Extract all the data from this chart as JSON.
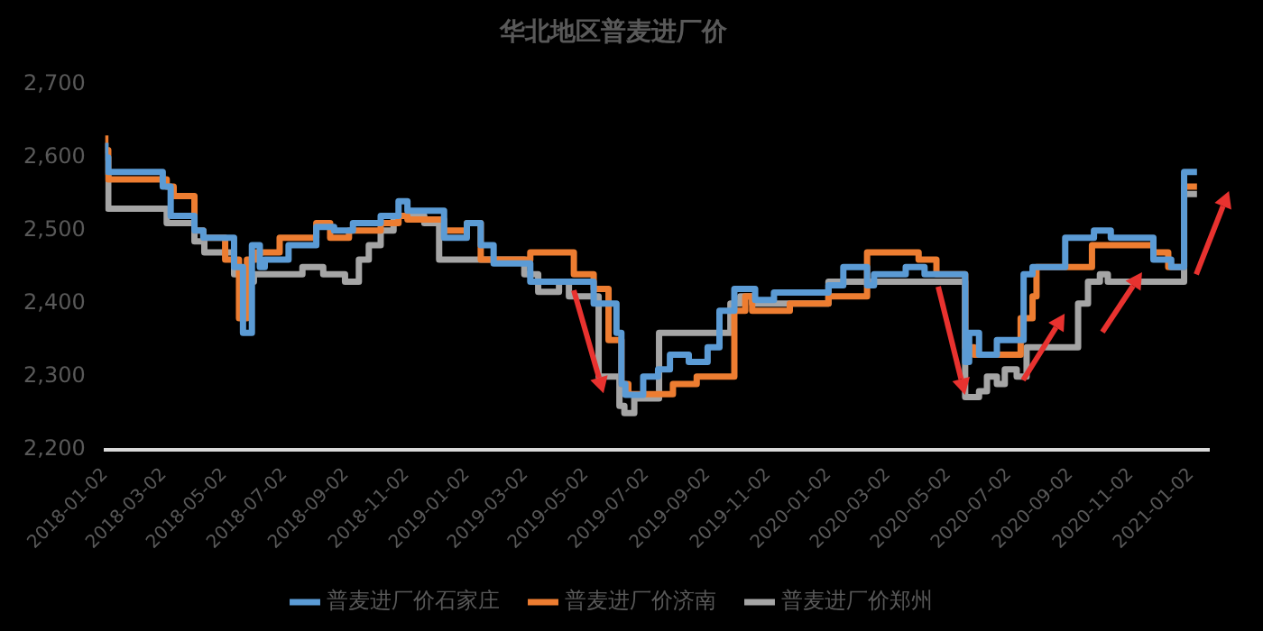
{
  "chart_data": {
    "type": "step",
    "title": "华北地区普麦进厂价",
    "xlim": [
      "2018-01-02",
      "2021-01-20"
    ],
    "xticks": [
      "2018-01-02",
      "2018-03-02",
      "2018-05-02",
      "2018-07-02",
      "2018-09-02",
      "2018-11-02",
      "2019-01-02",
      "2019-03-02",
      "2019-05-02",
      "2019-07-02",
      "2019-09-02",
      "2019-11-02",
      "2020-01-02",
      "2020-03-02",
      "2020-05-02",
      "2020-07-02",
      "2020-09-02",
      "2020-11-02",
      "2021-01-02"
    ],
    "ylim": [
      2200,
      2700
    ],
    "yticks": [
      {
        "value": 2200,
        "label": "2,200"
      },
      {
        "value": 2300,
        "label": "2,300"
      },
      {
        "value": 2400,
        "label": "2,400"
      },
      {
        "value": 2500,
        "label": "2,500"
      },
      {
        "value": 2600,
        "label": "2,600"
      },
      {
        "value": 2700,
        "label": "2,700"
      }
    ],
    "grid": false,
    "legend": "bottom",
    "line_style": "solid",
    "marker": "none",
    "series": [
      {
        "name": "普麦进厂价石家庄",
        "color": "#5b9bd5",
        "x": [
          "2018-01-02",
          "2018-01-05",
          "2018-03-01",
          "2018-03-09",
          "2018-04-02",
          "2018-04-11",
          "2018-05-12",
          "2018-05-21",
          "2018-05-30",
          "2018-06-07",
          "2018-06-12",
          "2018-07-06",
          "2018-08-03",
          "2018-08-21",
          "2018-09-09",
          "2018-10-07",
          "2018-10-25",
          "2018-11-03",
          "2018-12-10",
          "2019-01-02",
          "2019-01-16",
          "2019-01-29",
          "2019-03-07",
          "2019-05-10",
          "2019-06-02",
          "2019-06-07",
          "2019-06-11",
          "2019-06-29",
          "2019-07-14",
          "2019-07-26",
          "2019-08-14",
          "2019-09-02",
          "2019-09-14",
          "2019-09-29",
          "2019-10-20",
          "2019-11-08",
          "2020-01-02",
          "2020-01-17",
          "2020-02-10",
          "2020-02-17",
          "2020-03-20",
          "2020-04-08",
          "2020-05-19",
          "2020-05-23",
          "2020-06-02",
          "2020-06-20",
          "2020-07-17",
          "2020-07-26",
          "2020-08-28",
          "2020-09-26",
          "2020-10-13",
          "2020-11-25",
          "2020-12-13",
          "2020-12-26",
          "2021-01-05",
          "2021-01-08"
        ],
        "values": [
          2620,
          2600,
          2580,
          2560,
          2520,
          2500,
          2490,
          2450,
          2360,
          2480,
          2450,
          2460,
          2480,
          2505,
          2500,
          2510,
          2520,
          2540,
          2527,
          2490,
          2510,
          2480,
          2455,
          2430,
          2400,
          2360,
          2290,
          2275,
          2300,
          2310,
          2330,
          2320,
          2340,
          2390,
          2420,
          2405,
          2415,
          2425,
          2450,
          2425,
          2440,
          2450,
          2440,
          2320,
          2360,
          2330,
          2350,
          2440,
          2450,
          2490,
          2500,
          2490,
          2460,
          2450,
          2580,
          2580
        ]
      },
      {
        "name": "普麦进厂价济南",
        "color": "#ed7d31",
        "x": [
          "2018-01-02",
          "2018-01-05",
          "2018-03-05",
          "2018-03-12",
          "2018-04-02",
          "2018-04-11",
          "2018-05-03",
          "2018-05-17",
          "2018-05-25",
          "2018-06-03",
          "2018-06-27",
          "2018-08-03",
          "2018-08-17",
          "2018-09-05",
          "2018-10-07",
          "2018-10-25",
          "2018-11-03",
          "2018-12-10",
          "2019-01-02",
          "2019-01-16",
          "2019-03-07",
          "2019-04-20",
          "2019-05-10",
          "2019-05-25",
          "2019-06-07",
          "2019-06-14",
          "2019-07-29",
          "2019-08-22",
          "2019-09-29",
          "2019-10-10",
          "2019-10-17",
          "2019-11-24",
          "2020-01-02",
          "2020-02-10",
          "2020-04-02",
          "2020-04-20",
          "2020-05-19",
          "2020-05-28",
          "2020-07-14",
          "2020-07-26",
          "2020-07-30",
          "2020-09-24",
          "2020-10-10",
          "2020-11-25",
          "2020-12-10",
          "2020-12-26",
          "2021-01-05",
          "2021-01-08"
        ],
        "values": [
          2630,
          2610,
          2570,
          2560,
          2547,
          2500,
          2490,
          2460,
          2380,
          2460,
          2470,
          2490,
          2510,
          2490,
          2500,
          2510,
          2520,
          2515,
          2500,
          2510,
          2460,
          2470,
          2440,
          2420,
          2350,
          2290,
          2276,
          2290,
          2300,
          2390,
          2410,
          2390,
          2400,
          2410,
          2470,
          2460,
          2440,
          2340,
          2330,
          2380,
          2410,
          2450,
          2480,
          2480,
          2470,
          2450,
          2560,
          2560
        ]
      },
      {
        "name": "普麦进厂价郑州",
        "color": "#a5a5a5",
        "x": [
          "2018-01-02",
          "2018-01-05",
          "2018-03-05",
          "2018-04-02",
          "2018-04-12",
          "2018-05-12",
          "2018-05-21",
          "2018-05-27",
          "2018-06-01",
          "2018-07-20",
          "2018-08-10",
          "2018-09-01",
          "2018-09-15",
          "2018-09-25",
          "2018-10-07",
          "2018-10-20",
          "2018-10-30",
          "2018-11-20",
          "2018-12-05",
          "2019-03-01",
          "2019-03-15",
          "2019-04-05",
          "2019-04-15",
          "2019-05-15",
          "2019-06-05",
          "2019-06-10",
          "2019-06-20",
          "2019-07-15",
          "2019-09-25",
          "2019-10-05",
          "2019-10-17",
          "2020-01-02",
          "2020-04-02",
          "2020-05-19",
          "2020-06-02",
          "2020-06-10",
          "2020-06-20",
          "2020-06-28",
          "2020-07-10",
          "2020-07-20",
          "2020-07-26",
          "2020-09-10",
          "2020-09-20",
          "2020-10-02",
          "2020-10-10",
          "2020-12-26",
          "2021-01-05",
          "2021-01-08"
        ],
        "values": [
          2620,
          2580,
          2530,
          2510,
          2485,
          2470,
          2440,
          2400,
          2430,
          2440,
          2450,
          2440,
          2430,
          2460,
          2480,
          2500,
          2520,
          2520,
          2510,
          2460,
          2440,
          2416,
          2430,
          2410,
          2300,
          2260,
          2250,
          2270,
          2360,
          2400,
          2410,
          2400,
          2430,
          2430,
          2272,
          2280,
          2300,
          2290,
          2310,
          2300,
          2340,
          2340,
          2400,
          2430,
          2440,
          2430,
          2550,
          2550
        ]
      }
    ]
  }
}
